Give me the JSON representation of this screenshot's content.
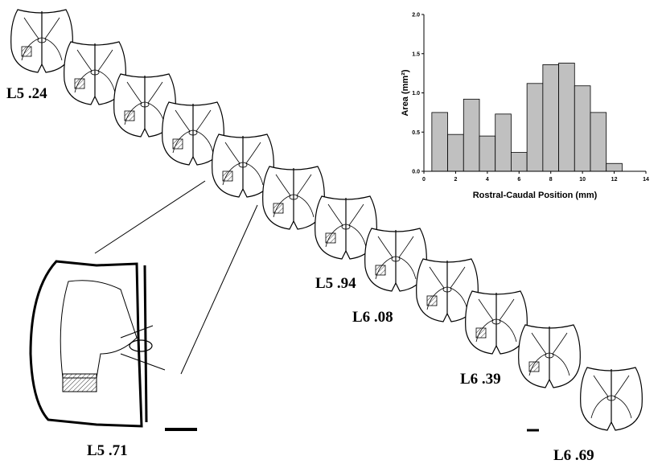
{
  "chart_data": {
    "type": "histogram",
    "x_label": "Rostral-Caudal Position (mm)",
    "y_label": "Area (mm²)",
    "bins": [
      0.5,
      1.5,
      2.5,
      3.5,
      4.5,
      5.5,
      6.5,
      7.5,
      8.5,
      9.5,
      10.5,
      11.5,
      12.5
    ],
    "values": [
      0.75,
      0.47,
      0.92,
      0.45,
      0.73,
      0.24,
      1.12,
      1.36,
      1.38,
      1.09,
      0.75,
      0.1
    ],
    "color": "#c0c0c0",
    "xlim": [
      0,
      14
    ],
    "xticks": [
      0,
      2,
      4,
      6,
      8,
      10,
      12,
      14
    ],
    "ylim": [
      0,
      2
    ],
    "yticks": [
      {
        "value": 0,
        "label": "0.0"
      },
      0.5,
      {
        "value": 1,
        "label": "1.0"
      },
      1.5,
      {
        "value": 2,
        "label": "2.0"
      }
    ]
  },
  "section_labels": [
    "L5 .24",
    "L5 .94",
    "L6 .08",
    "L6 .39",
    "L5 .71",
    "L6 .69"
  ]
}
